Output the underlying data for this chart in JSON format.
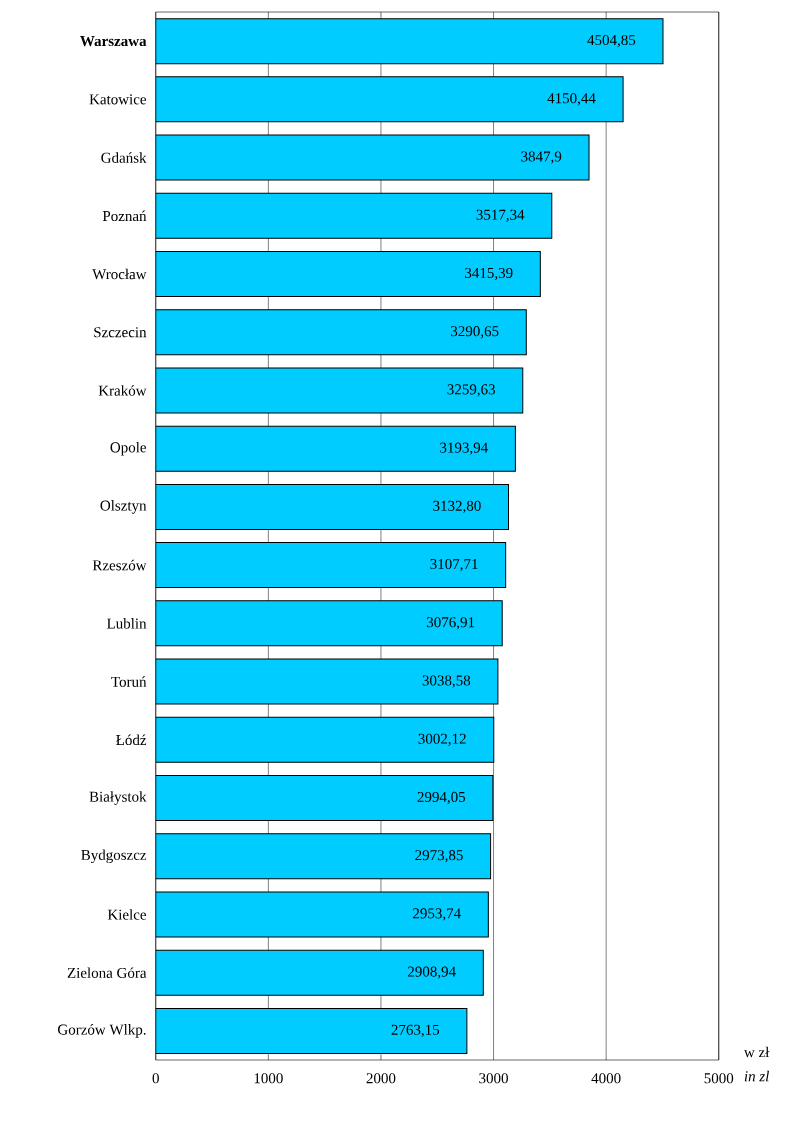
{
  "chart_data": {
    "type": "bar",
    "orientation": "horizontal",
    "categories": [
      "**Warszawa**",
      "Katowice",
      "Gdańsk",
      "Poznań",
      "Wrocław",
      "Szczecin",
      "Kraków",
      "Opole",
      "Olsztyn",
      "Rzeszów",
      "Lublin",
      "Toruń",
      "Łódź",
      "Białystok",
      "Bydgoszcz",
      "Kielce",
      "Zielona Góra",
      "Gorzów Wlkp."
    ],
    "values": [
      4504.85,
      4150.44,
      3847.9,
      3517.34,
      3415.39,
      3290.65,
      3259.63,
      3193.94,
      3132.8,
      3107.71,
      3076.91,
      3038.58,
      3002.12,
      2994.05,
      2973.85,
      2953.74,
      2908.94,
      2763.15
    ],
    "value_labels": [
      "4504,85",
      "4150,44",
      "3847,9",
      "3517,34",
      "3415,39",
      "3290,65",
      "3259,63",
      "3193,94",
      "3132,80",
      "3107,71",
      "3076,91",
      "3038,58",
      "3002,12",
      "2994,05",
      "2973,85",
      "2953,74",
      "2908,94",
      "2763,15"
    ],
    "color": "#00ccff",
    "xlim": [
      0,
      5000
    ],
    "xticks": [
      0,
      1000,
      2000,
      3000,
      4000,
      5000
    ],
    "grid": "x",
    "annotations": [
      "w zł",
      "*in zl*"
    ]
  }
}
